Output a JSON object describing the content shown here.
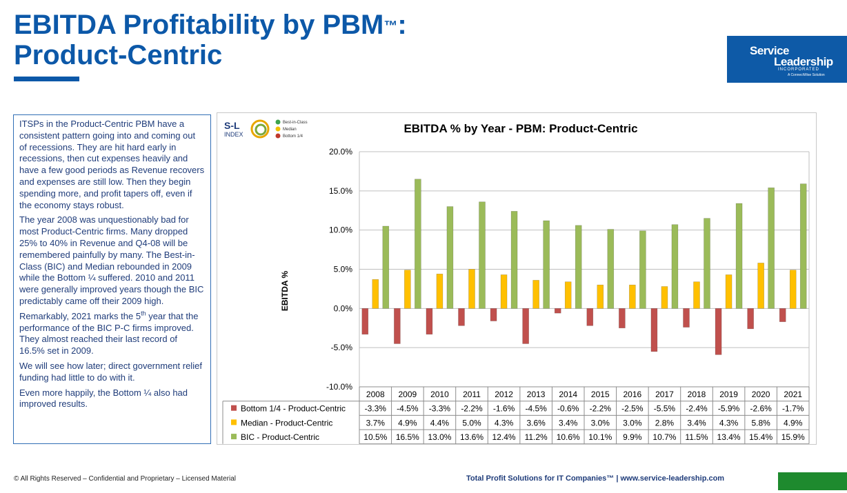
{
  "header": {
    "title_line1": "EBITDA Profitability by PBM",
    "title_tm": "™",
    "title_colon": ":",
    "title_line2": "Product-Centric"
  },
  "logo": {
    "line1": "Service",
    "line2": "Leadership",
    "line3": "INCORPORATED",
    "line4": "A ConnectWise Solution",
    "color": "#0e5aa7"
  },
  "textbox": {
    "p1": "ITSPs in the Product-Centric PBM have a consistent pattern going into and coming out of recessions. They are hit hard early in recessions, then cut expenses heavily and have a few good periods as Revenue recovers and expenses are still low. Then they begin spending more, and profit tapers off, even if the economy stays robust.",
    "p2": "The year 2008 was unquestionably bad for most Product-Centric firms. Many dropped 25% to 40% in Revenue and Q4-08 will be remembered painfully by many. The Best-in-Class (BIC) and Median rebounded in 2009 while the Bottom ¼ suffered. 2010 and 2011 were generally improved years though the BIC predictably came off their 2009 high.",
    "p3_a": "Remarkably, 2021 marks the 5",
    "p3_sup": "th",
    "p3_b": " year that the performance of the BIC P-C firms improved. They almost reached their last record of 16.5% set in 2009.",
    "p4": "We will see how later; direct government relief funding had little to do with it.",
    "p5": "Even more happily, the Bottom ¼ also had improved results."
  },
  "sl_index": {
    "line1": "S-L",
    "line2": "INDEX",
    "legend": [
      "Best-in-Class",
      "Median",
      "Bottom 1/4"
    ]
  },
  "chart_data": {
    "type": "bar",
    "title": "EBITDA % by Year - PBM: Product-Centric",
    "ylabel": "EBITDA %",
    "xlabel": "",
    "ylim": [
      -10,
      20
    ],
    "yticks": [
      "20.0%",
      "15.0%",
      "10.0%",
      "5.0%",
      "0.0%",
      "-5.0%",
      "-10.0%"
    ],
    "categories": [
      "2008",
      "2009",
      "2010",
      "2011",
      "2012",
      "2013",
      "2014",
      "2015",
      "2016",
      "2017",
      "2018",
      "2019",
      "2020",
      "2021"
    ],
    "series": [
      {
        "name": "Bottom 1/4 - Product-Centric",
        "color": "#c0504d",
        "values": [
          -3.3,
          -4.5,
          -3.3,
          -2.2,
          -1.6,
          -4.5,
          -0.6,
          -2.2,
          -2.5,
          -5.5,
          -2.4,
          -5.9,
          -2.6,
          -1.7
        ],
        "labels": [
          "-3.3%",
          "-4.5%",
          "-3.3%",
          "-2.2%",
          "-1.6%",
          "-4.5%",
          "-0.6%",
          "-2.2%",
          "-2.5%",
          "-5.5%",
          "-2.4%",
          "-5.9%",
          "-2.6%",
          "-1.7%"
        ]
      },
      {
        "name": "Median - Product-Centric",
        "color": "#ffc000",
        "values": [
          3.7,
          4.9,
          4.4,
          5.0,
          4.3,
          3.6,
          3.4,
          3.0,
          3.0,
          2.8,
          3.4,
          4.3,
          5.8,
          4.9
        ],
        "labels": [
          "3.7%",
          "4.9%",
          "4.4%",
          "5.0%",
          "4.3%",
          "3.6%",
          "3.4%",
          "3.0%",
          "3.0%",
          "2.8%",
          "3.4%",
          "4.3%",
          "5.8%",
          "4.9%"
        ]
      },
      {
        "name": "BIC - Product-Centric",
        "color": "#9bbb59",
        "values": [
          10.5,
          16.5,
          13.0,
          13.6,
          12.4,
          11.2,
          10.6,
          10.1,
          9.9,
          10.7,
          11.5,
          13.4,
          15.4,
          15.9
        ],
        "labels": [
          "10.5%",
          "16.5%",
          "13.0%",
          "13.6%",
          "12.4%",
          "11.2%",
          "10.6%",
          "10.1%",
          "9.9%",
          "10.7%",
          "11.5%",
          "13.4%",
          "15.4%",
          "15.9%"
        ]
      }
    ],
    "grid": true,
    "legend": "data-table"
  },
  "footer": {
    "left": "© All Rights Reserved – Confidential and Proprietary – Licensed Material",
    "right": "Total Profit Solutions for IT Companies™  |  www.service-leadership.com",
    "accent": "#1e8a2e"
  }
}
